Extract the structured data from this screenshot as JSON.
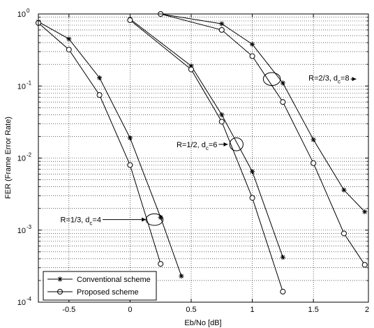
{
  "chart_data": {
    "type": "line",
    "xlabel": "Eb/No [dB]",
    "ylabel": "FER (Frame Error Rate)",
    "xlim": [
      -0.75,
      1.95
    ],
    "ylim": [
      0.0001,
      1
    ],
    "y_scale": "log",
    "grid": true,
    "grid_style": "dotted",
    "x_ticks": [
      -0.5,
      0,
      0.5,
      1,
      1.5
    ],
    "x_tick_labels": [
      "-0.5",
      "0",
      "0.5",
      "1",
      "1.5"
    ],
    "x_tick_labels_right": {
      "value": 2,
      "label": "2"
    },
    "y_ticks": [
      {
        "value": 1,
        "base": "10",
        "exp": "0"
      },
      {
        "value": 0.1,
        "base": "10",
        "exp": "-1"
      },
      {
        "value": 0.01,
        "base": "10",
        "exp": "-2"
      },
      {
        "value": 0.001,
        "base": "10",
        "exp": "-3"
      },
      {
        "value": 0.0001,
        "base": "10",
        "exp": "-4"
      }
    ],
    "legend": {
      "placement": "bottom-left",
      "entries": [
        {
          "label": "Conventional scheme",
          "marker": "star"
        },
        {
          "label": "Proposed scheme",
          "marker": "circle"
        }
      ]
    },
    "series": [
      {
        "group": "R=1/3",
        "scheme": "conventional",
        "marker": "star",
        "x": [
          -0.75,
          -0.5,
          -0.25,
          0,
          0.25,
          0.42
        ],
        "y": [
          0.78,
          0.45,
          0.13,
          0.019,
          0.0015,
          0.00023
        ]
      },
      {
        "group": "R=1/3",
        "scheme": "proposed",
        "marker": "circle",
        "x": [
          -0.75,
          -0.5,
          -0.25,
          0,
          0.25
        ],
        "y": [
          0.75,
          0.32,
          0.075,
          0.008,
          0.00034
        ]
      },
      {
        "group": "R=1/2",
        "scheme": "conventional",
        "marker": "star",
        "x": [
          0,
          0.5,
          0.75,
          1,
          1.25
        ],
        "y": [
          0.85,
          0.19,
          0.04,
          0.0065,
          0.00042
        ]
      },
      {
        "group": "R=1/2",
        "scheme": "proposed",
        "marker": "circle",
        "x": [
          0,
          0.5,
          0.75,
          1,
          1.25
        ],
        "y": [
          0.82,
          0.17,
          0.032,
          0.0028,
          0.00014
        ]
      },
      {
        "group": "R=2/3",
        "scheme": "conventional",
        "marker": "star",
        "x": [
          0.25,
          0.75,
          1,
          1.25,
          1.5,
          1.75,
          1.92
        ],
        "y": [
          1.0,
          0.73,
          0.38,
          0.11,
          0.018,
          0.0036,
          0.0018
        ]
      },
      {
        "group": "R=2/3",
        "scheme": "proposed",
        "marker": "circle",
        "x": [
          0.25,
          0.75,
          1,
          1.25,
          1.5,
          1.75,
          1.92
        ],
        "y": [
          1.0,
          0.6,
          0.26,
          0.06,
          0.0085,
          0.0009,
          0.00033
        ]
      }
    ],
    "annotations": [
      {
        "id": "r23",
        "text_main": "R=2/3, d",
        "text_sub": "c",
        "text_tail": "=8",
        "text_x": 1.46,
        "text_y": 0.13,
        "arrow_to_x": 1.22,
        "arrow_to_y": 0.125,
        "ellipse_x": 1.16,
        "ellipse_y": 0.125,
        "ellipse_rx_dx": 0.07,
        "ellipse_ry_dec": 0.09
      },
      {
        "id": "r12",
        "text_main": "R=1/2, d",
        "text_sub": "c",
        "text_tail": "=6",
        "text_x": 0.38,
        "text_y": 0.0155,
        "arrow_to_x": 0.8,
        "arrow_to_y": 0.0155,
        "ellipse_x": 0.87,
        "ellipse_y": 0.0155,
        "ellipse_rx_dx": 0.055,
        "ellipse_ry_dec": 0.09
      },
      {
        "id": "r13",
        "text_main": "R=1/3, d",
        "text_sub": "c",
        "text_tail": "=4",
        "text_x": -0.57,
        "text_y": 0.0014,
        "arrow_to_x": 0.13,
        "arrow_to_y": 0.0014,
        "ellipse_x": 0.2,
        "ellipse_y": 0.0014,
        "ellipse_rx_dx": 0.07,
        "ellipse_ry_dec": 0.08
      }
    ]
  }
}
